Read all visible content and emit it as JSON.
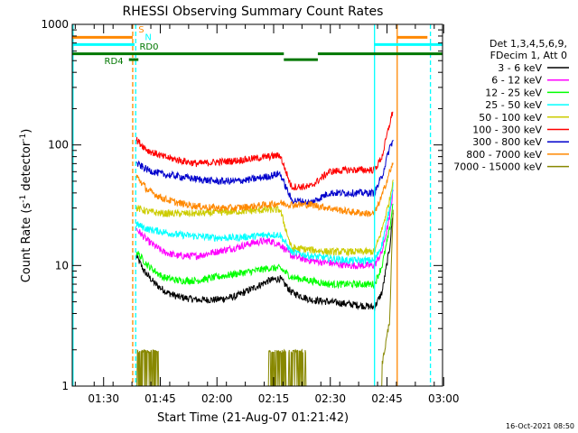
{
  "chart_data": {
    "type": "line",
    "title": "RHESSI Observing Summary Count Rates",
    "xlabel": "Start Time (21-Aug-07 01:21:42)",
    "ylabel_main": "Count Rate (s",
    "ylabel_sup1": "-1",
    "ylabel_mid": " detector",
    "ylabel_sup2": "-1",
    "ylabel_end": ")",
    "footer_date": "16-Oct-2021 08:50",
    "x_units": "minutes after 01:21:42",
    "xlim": [
      0,
      98
    ],
    "ylim": [
      1,
      1000
    ],
    "yscale": "log",
    "x_ticks": [
      {
        "t": 8.3,
        "label": "01:30"
      },
      {
        "t": 23.3,
        "label": "01:45"
      },
      {
        "t": 38.3,
        "label": "02:00"
      },
      {
        "t": 53.3,
        "label": "02:15"
      },
      {
        "t": 68.3,
        "label": "02:30"
      },
      {
        "t": 83.3,
        "label": "02:45"
      },
      {
        "t": 98.3,
        "label": "03:00"
      }
    ],
    "y_ticks": [
      {
        "v": 1,
        "label": "1"
      },
      {
        "v": 10,
        "label": "10"
      },
      {
        "v": 100,
        "label": "100"
      },
      {
        "v": 1000,
        "label": "1000"
      }
    ],
    "legend_header": [
      "Det 1,3,4,5,6,9,",
      "FDecim 1, Att 0"
    ],
    "legend_placement": "right",
    "series": [
      {
        "name": "3 - 6 keV",
        "color": "#000000",
        "values": [
          [
            17,
            12
          ],
          [
            19,
            9
          ],
          [
            22,
            7
          ],
          [
            25,
            6
          ],
          [
            28,
            5.5
          ],
          [
            33,
            5.2
          ],
          [
            38,
            5.2
          ],
          [
            43,
            5.5
          ],
          [
            48,
            6.5
          ],
          [
            52,
            7.5
          ],
          [
            55,
            7.8
          ],
          [
            58,
            6
          ],
          [
            63,
            5.2
          ],
          [
            68,
            5
          ],
          [
            73,
            4.8
          ],
          [
            78,
            4.6
          ],
          [
            80,
            4.5
          ],
          [
            82,
            6
          ],
          [
            84,
            14
          ],
          [
            85,
            30
          ]
        ]
      },
      {
        "name": "6 - 12 keV",
        "color": "#ff00ff",
        "values": [
          [
            17,
            20
          ],
          [
            20,
            16
          ],
          [
            24,
            13
          ],
          [
            28,
            12
          ],
          [
            33,
            12
          ],
          [
            38,
            13
          ],
          [
            43,
            14
          ],
          [
            48,
            15.5
          ],
          [
            52,
            16
          ],
          [
            55,
            15
          ],
          [
            58,
            12
          ],
          [
            63,
            11
          ],
          [
            68,
            10.5
          ],
          [
            73,
            10
          ],
          [
            78,
            10
          ],
          [
            80,
            10
          ],
          [
            82,
            13
          ],
          [
            84,
            25
          ],
          [
            85,
            45
          ]
        ]
      },
      {
        "name": "12 - 25 keV",
        "color": "#00ff00",
        "values": [
          [
            17,
            13
          ],
          [
            20,
            10
          ],
          [
            24,
            8
          ],
          [
            28,
            7.5
          ],
          [
            33,
            7.5
          ],
          [
            38,
            8
          ],
          [
            43,
            8.5
          ],
          [
            48,
            9
          ],
          [
            52,
            9.5
          ],
          [
            55,
            9.5
          ],
          [
            58,
            8
          ],
          [
            63,
            7.5
          ],
          [
            68,
            7
          ],
          [
            73,
            7
          ],
          [
            78,
            7
          ],
          [
            80,
            7
          ],
          [
            82,
            10
          ],
          [
            84,
            20
          ],
          [
            85,
            35
          ]
        ]
      },
      {
        "name": "25 - 50 keV",
        "color": "#00ffff",
        "values": [
          [
            17,
            22
          ],
          [
            20,
            20
          ],
          [
            24,
            19
          ],
          [
            28,
            18
          ],
          [
            33,
            17.5
          ],
          [
            38,
            17
          ],
          [
            43,
            17
          ],
          [
            48,
            17.5
          ],
          [
            52,
            18
          ],
          [
            55,
            18
          ],
          [
            58,
            13
          ],
          [
            63,
            12
          ],
          [
            68,
            11.5
          ],
          [
            73,
            11
          ],
          [
            78,
            11
          ],
          [
            80,
            11
          ],
          [
            82,
            15
          ],
          [
            84,
            30
          ],
          [
            85,
            50
          ]
        ]
      },
      {
        "name": "50 - 100 keV",
        "color": "#cccc00",
        "values": [
          [
            17,
            30
          ],
          [
            20,
            28
          ],
          [
            24,
            27
          ],
          [
            28,
            27
          ],
          [
            33,
            27
          ],
          [
            38,
            27.5
          ],
          [
            43,
            28
          ],
          [
            48,
            28.5
          ],
          [
            52,
            29
          ],
          [
            55,
            29
          ],
          [
            58,
            14
          ],
          [
            63,
            13.5
          ],
          [
            68,
            13
          ],
          [
            73,
            13
          ],
          [
            78,
            13
          ],
          [
            80,
            13
          ],
          [
            82,
            20
          ],
          [
            84,
            35
          ],
          [
            85,
            55
          ]
        ]
      },
      {
        "name": "100 - 300 keV",
        "color": "#ff0000",
        "values": [
          [
            17,
            110
          ],
          [
            20,
            90
          ],
          [
            24,
            80
          ],
          [
            28,
            75
          ],
          [
            33,
            70
          ],
          [
            38,
            72
          ],
          [
            43,
            74
          ],
          [
            48,
            77
          ],
          [
            52,
            80
          ],
          [
            55,
            82
          ],
          [
            58,
            45
          ],
          [
            63,
            45
          ],
          [
            68,
            60
          ],
          [
            73,
            62
          ],
          [
            78,
            62
          ],
          [
            80,
            62
          ],
          [
            82,
            80
          ],
          [
            84,
            150
          ],
          [
            85,
            200
          ]
        ]
      },
      {
        "name": "300 - 800 keV",
        "color": "#0000cc",
        "values": [
          [
            17,
            70
          ],
          [
            20,
            62
          ],
          [
            24,
            57
          ],
          [
            28,
            55
          ],
          [
            33,
            52
          ],
          [
            38,
            50
          ],
          [
            43,
            50
          ],
          [
            48,
            52
          ],
          [
            52,
            55
          ],
          [
            55,
            58
          ],
          [
            58,
            35
          ],
          [
            63,
            33
          ],
          [
            68,
            40
          ],
          [
            73,
            40
          ],
          [
            78,
            40
          ],
          [
            80,
            40
          ],
          [
            82,
            55
          ],
          [
            84,
            95
          ],
          [
            85,
            110
          ]
        ]
      },
      {
        "name": "800 - 7000 keV",
        "color": "#ff8800",
        "values": [
          [
            17,
            55
          ],
          [
            20,
            42
          ],
          [
            24,
            36
          ],
          [
            28,
            33
          ],
          [
            33,
            31
          ],
          [
            38,
            30
          ],
          [
            43,
            30
          ],
          [
            48,
            31
          ],
          [
            52,
            32
          ],
          [
            55,
            33
          ],
          [
            58,
            32
          ],
          [
            63,
            32
          ],
          [
            68,
            30
          ],
          [
            73,
            28
          ],
          [
            78,
            27
          ],
          [
            80,
            27
          ],
          [
            82,
            38
          ],
          [
            84,
            60
          ],
          [
            85,
            70
          ]
        ]
      },
      {
        "name": "7000 - 15000 keV",
        "color": "#888800",
        "values": [
          [
            17,
            1.9
          ],
          [
            23,
            1.9
          ],
          [
            52,
            1.8
          ],
          [
            62,
            1.8
          ],
          [
            82,
            1.5
          ],
          [
            84,
            3.5
          ],
          [
            85,
            35
          ]
        ]
      }
    ],
    "annotations": [
      {
        "text": "S",
        "t": 17.5,
        "y": 860,
        "color": "#ff8800"
      },
      {
        "text": "N",
        "t": 19.2,
        "y": 740,
        "color": "#00ffff"
      },
      {
        "text": "RD0",
        "t": 17.8,
        "y": 615,
        "color": "#007700"
      },
      {
        "text": "RD4",
        "t": 8.5,
        "y": 470,
        "color": "#007700"
      }
    ],
    "state_bars": [
      {
        "label": "S",
        "color": "#ff8800",
        "level": 780,
        "spans": [
          [
            0,
            16
          ],
          [
            86,
            94
          ]
        ]
      },
      {
        "label": "N",
        "color": "#00ffff",
        "level": 680,
        "spans": [
          [
            0,
            16.5
          ],
          [
            80,
            98
          ]
        ]
      },
      {
        "label": "RD0",
        "color": "#007700",
        "level": 570,
        "spans": [
          [
            0,
            56
          ],
          [
            65,
            98
          ]
        ]
      },
      {
        "label": "RD4",
        "color": "#007700",
        "level": 510,
        "spans": [
          [
            15,
            17.5
          ],
          [
            56,
            65
          ]
        ]
      }
    ],
    "vertical_markers": [
      {
        "t": 0.2,
        "color": "#00ffff",
        "dash": false
      },
      {
        "t": 16.0,
        "color": "#ff8800",
        "dash": true
      },
      {
        "t": 16.8,
        "color": "#00ffff",
        "dash": true
      },
      {
        "t": 80.0,
        "color": "#00ffff",
        "dash": false
      },
      {
        "t": 86.0,
        "color": "#ff8800",
        "dash": false
      },
      {
        "t": 94.8,
        "color": "#00ffff",
        "dash": true
      }
    ]
  }
}
